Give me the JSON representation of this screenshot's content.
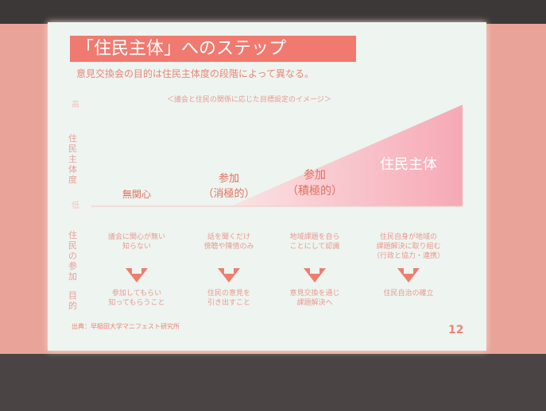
{
  "slide": {
    "title": "「住民主体」へのステップ",
    "subtitle": "意見交換会の目的は住民主体度の段階によって異なる。",
    "caption": "＜議会と住民の関係に応じた目標設定のイメージ＞",
    "axis": {
      "label": "住民主体度",
      "high": "高",
      "low": "低"
    },
    "row_labels": [
      "住民の参加",
      "目的"
    ],
    "stages": [
      "無関心",
      "参加\n（消極的）",
      "参加\n（積極的）",
      "住民主体"
    ],
    "participation": [
      "議会に関心が無い\n知らない",
      "話を聞くだけ\n傍聴や陳情のみ",
      "地域課題を自ら\nことにして認識",
      "住民自身が地域の\n課題解決に取り組む\n（行政と協力・連携）"
    ],
    "purposes": [
      "参加してもらい\n知ってもらうこと",
      "住民の意見を\n引き出すこと",
      "意見交換を通じ\n課題解決へ",
      "住民自治の確立"
    ],
    "source": "出典：早稲田大学マニフェスト研究所",
    "page_number": "12"
  }
}
